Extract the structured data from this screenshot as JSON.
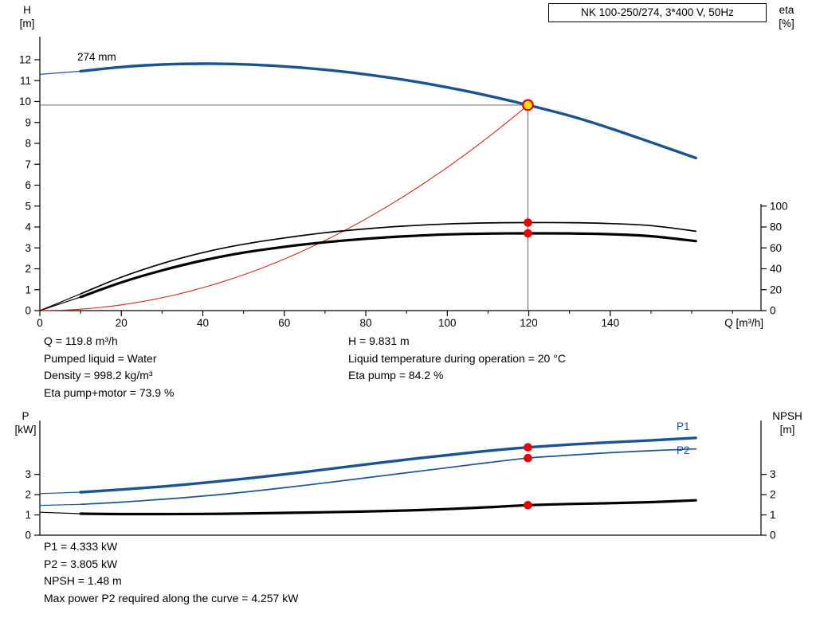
{
  "header": {
    "title_box": "NK 100-250/274, 3*400 V, 50Hz"
  },
  "labels": {
    "h_axis": [
      "H",
      "[m]"
    ],
    "eta_axis": [
      "eta",
      "[%]"
    ],
    "q_axis": "Q [m³/h]",
    "p_axis": [
      "P",
      "[kW]"
    ],
    "npsh_axis": [
      "NPSH",
      "[m]"
    ],
    "curve_size": "274 mm",
    "p1": "P1",
    "p2": "P2"
  },
  "info": {
    "top_left": [
      "Q = 119.8 m³/h",
      "Pumped liquid = Water",
      "Density = 998.2 kg/m³",
      "Eta pump+motor = 73.9 %"
    ],
    "top_right": [
      "H = 9.831 m",
      "Liquid temperature during operation = 20 °C",
      "Eta pump = 84.2 %"
    ],
    "bottom": [
      "P1 = 4.333 kW",
      "P2 = 3.805 kW",
      "NPSH = 1.48 m",
      "Max power P2 required along the curve = 4.257 kW"
    ]
  },
  "colors": {
    "curve_blue": "#1A5296",
    "black": "#000000",
    "red": "#D42A1E",
    "marker_red": "#EC0000",
    "marker_yellow": "#FFDD00",
    "crosshair": "#555555"
  },
  "chart_data": [
    {
      "type": "line",
      "title": "NK 100-250/274, 3*400 V, 50Hz",
      "xlabel": "Q [m³/h]",
      "ylabel_left": "H [m]",
      "ylabel_right": "eta [%]",
      "xlim": [
        0,
        177
      ],
      "ylim_left": [
        0,
        14.5
      ],
      "ylim_right_eta": [
        0,
        110
      ],
      "x_ticks": [
        0,
        20,
        40,
        60,
        80,
        100,
        120,
        140
      ],
      "y_ticks_left": [
        0,
        1,
        2,
        3,
        4,
        5,
        6,
        7,
        8,
        9,
        10,
        11,
        12
      ],
      "y_ticks_right_eta": [
        0,
        20,
        40,
        60,
        80,
        100
      ],
      "operating_point": {
        "Q": 119.8,
        "H": 9.831
      },
      "series": [
        {
          "id": "pump-curve-274mm",
          "label": "274 mm",
          "axis": "H",
          "style": "thick-blue",
          "Q": [
            10,
            20,
            30,
            40,
            50,
            60,
            70,
            80,
            90,
            100,
            110,
            119.8,
            130,
            140,
            150,
            161
          ],
          "values": [
            11.45,
            11.65,
            11.77,
            11.81,
            11.78,
            11.68,
            11.52,
            11.3,
            11.02,
            10.68,
            10.28,
            9.831,
            9.32,
            8.72,
            8.05,
            7.3
          ],
          "lead_in": {
            "Q": [
              0,
              10
            ],
            "values": [
              11.3,
              11.45
            ]
          }
        },
        {
          "id": "affinity-parabola",
          "axis": "H",
          "style": "thin-red",
          "parabola_through": {
            "Q": 119.8,
            "H": 9.831
          }
        },
        {
          "id": "eta-pump",
          "axis": "eta",
          "style": "thin-black",
          "Q": [
            10,
            20,
            30,
            40,
            50,
            60,
            70,
            80,
            90,
            100,
            110,
            119.8,
            130,
            140,
            150,
            161
          ],
          "values": [
            16,
            32,
            45,
            55.5,
            63.5,
            69.5,
            74.5,
            78.2,
            81.0,
            82.9,
            83.9,
            84.2,
            84.1,
            83.3,
            81.3,
            76.0
          ],
          "lead_in": {
            "Q": [
              0,
              10
            ],
            "values": [
              0,
              16
            ]
          },
          "marker": {
            "Q": 119.8,
            "value": 84.2
          }
        },
        {
          "id": "eta-pump-motor",
          "axis": "eta",
          "style": "thick-black",
          "Q": [
            10,
            20,
            30,
            40,
            50,
            60,
            70,
            80,
            90,
            100,
            110,
            119.8,
            130,
            140,
            150,
            161
          ],
          "values": [
            13,
            27,
            38.5,
            48,
            55.5,
            61,
            65.4,
            68.7,
            71.2,
            72.9,
            73.7,
            73.9,
            73.8,
            73.1,
            71.2,
            66.5
          ],
          "lead_in": {
            "Q": [
              0,
              10
            ],
            "values": [
              0,
              13
            ]
          },
          "marker": {
            "Q": 119.8,
            "value": 73.9
          }
        }
      ]
    },
    {
      "type": "line",
      "xlabel": "Q [m³/h]",
      "ylabel_left": "P [kW]",
      "ylabel_right": "NPSH [m]",
      "xlim": [
        0,
        177
      ],
      "ylim": [
        0,
        5.65
      ],
      "y_ticks_left": [
        0,
        1,
        2,
        3
      ],
      "y_ticks_right": [
        0,
        1,
        2,
        3
      ],
      "series": [
        {
          "id": "P1",
          "label": "P1",
          "style": "thick-blue",
          "Q": [
            10,
            20,
            30,
            40,
            50,
            60,
            70,
            80,
            90,
            100,
            110,
            119.8,
            130,
            140,
            150,
            161
          ],
          "values": [
            2.12,
            2.25,
            2.4,
            2.58,
            2.78,
            3.0,
            3.24,
            3.49,
            3.73,
            3.95,
            4.16,
            4.333,
            4.47,
            4.58,
            4.68,
            4.8
          ],
          "lead_in": {
            "Q": [
              0,
              10
            ],
            "values": [
              2.05,
              2.12
            ]
          },
          "marker": {
            "Q": 119.8,
            "value": 4.333
          }
        },
        {
          "id": "P2",
          "label": "P2",
          "style": "thin-blue",
          "Q": [
            10,
            20,
            30,
            40,
            50,
            60,
            70,
            80,
            90,
            100,
            110,
            119.8,
            130,
            140,
            150,
            161
          ],
          "values": [
            1.52,
            1.63,
            1.77,
            1.93,
            2.12,
            2.34,
            2.58,
            2.83,
            3.08,
            3.33,
            3.58,
            3.805,
            3.95,
            4.07,
            4.17,
            4.257
          ],
          "lead_in": {
            "Q": [
              0,
              10
            ],
            "values": [
              1.47,
              1.52
            ]
          },
          "marker": {
            "Q": 119.8,
            "value": 3.805
          }
        },
        {
          "id": "NPSH",
          "style": "thick-black",
          "Q": [
            10,
            20,
            30,
            40,
            50,
            60,
            70,
            80,
            90,
            100,
            110,
            119.8,
            130,
            140,
            150,
            161
          ],
          "values": [
            1.06,
            1.04,
            1.04,
            1.05,
            1.07,
            1.1,
            1.13,
            1.17,
            1.22,
            1.29,
            1.38,
            1.48,
            1.54,
            1.58,
            1.63,
            1.72
          ],
          "lead_in": {
            "Q": [
              0,
              10
            ],
            "values": [
              1.13,
              1.06
            ]
          },
          "marker": {
            "Q": 119.8,
            "value": 1.48
          }
        }
      ]
    }
  ]
}
